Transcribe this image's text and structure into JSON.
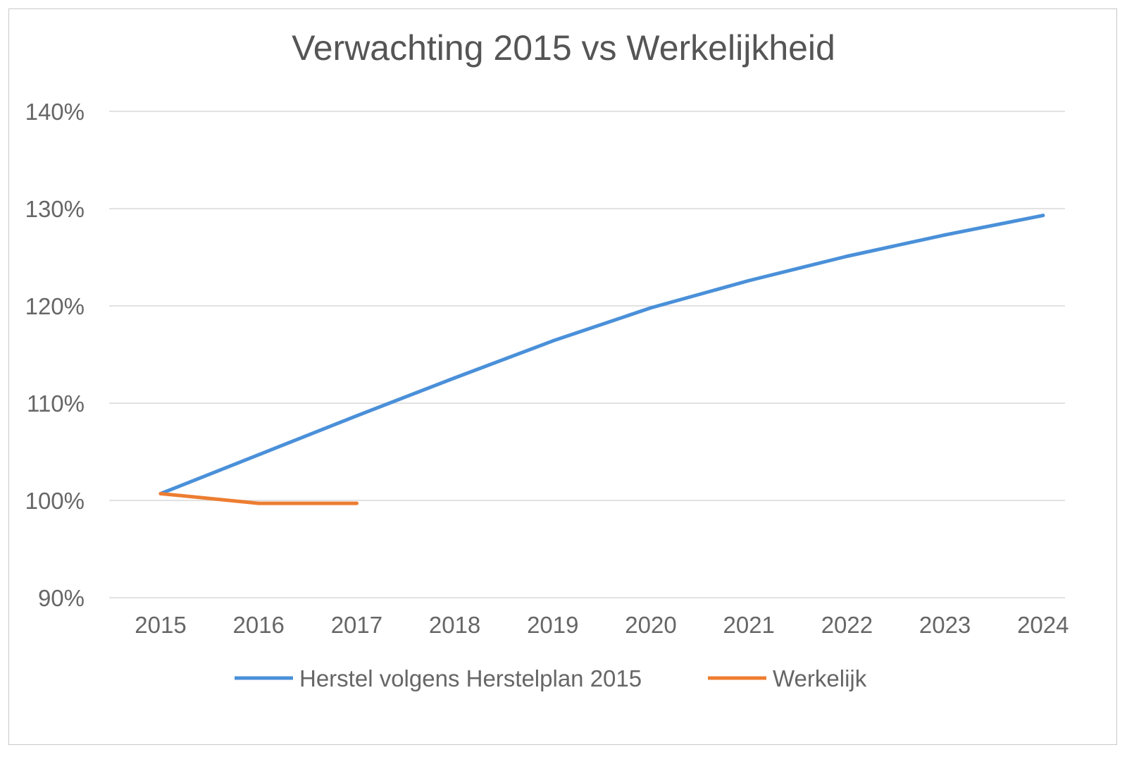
{
  "chart_data": {
    "type": "line",
    "title": "Verwachting 2015 vs Werkelijkheid",
    "xlabel": "",
    "ylabel": "",
    "categories": [
      "2015",
      "2016",
      "2017",
      "2018",
      "2019",
      "2020",
      "2021",
      "2022",
      "2023",
      "2024"
    ],
    "y_ticks": [
      "90%",
      "100%",
      "110%",
      "120%",
      "130%",
      "140%"
    ],
    "ylim": [
      90,
      140
    ],
    "grid": true,
    "legend_position": "bottom",
    "series": [
      {
        "name": "Herstel volgens Herstelplan 2015",
        "color": "#4a90d9",
        "values": [
          100.7,
          104.7,
          108.7,
          112.6,
          116.4,
          119.8,
          122.6,
          125.1,
          127.3,
          129.3
        ]
      },
      {
        "name": "Werkelijk",
        "color": "#ed7d31",
        "values": [
          100.7,
          99.7,
          99.7,
          null,
          null,
          null,
          null,
          null,
          null,
          null
        ]
      }
    ]
  }
}
